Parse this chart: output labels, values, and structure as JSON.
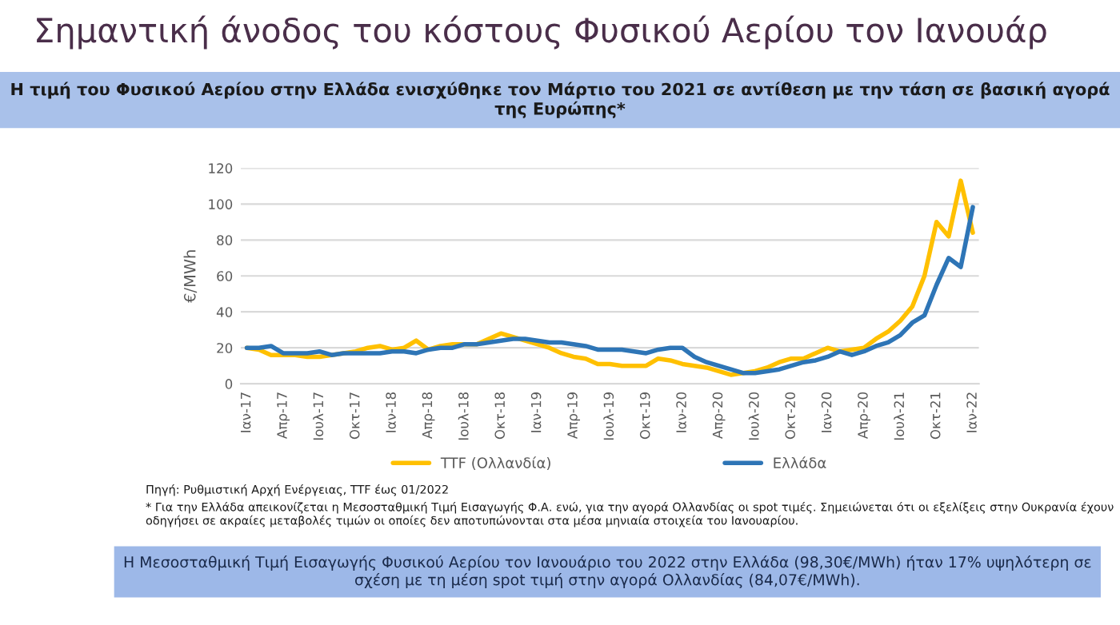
{
  "chart_data": {
    "type": "line",
    "title": "Σημαντική άνοδος του κόστους Φυσικού Αερίου τον Ιανουάρ",
    "subtitle": "Η τιμή του Φυσικού Αερίου στην Ελλάδα ενισχύθηκε τον Μάρτιο του 2021 σε αντίθεση με την τάση σε βασική αγορά της Ευρώπης*",
    "ylabel": "€/MWh",
    "categories": [
      "Ιαν-17",
      null,
      null,
      "Απρ-17",
      null,
      null,
      "Ιουλ-17",
      null,
      null,
      "Οκτ-17",
      null,
      null,
      "Ιαν-18",
      null,
      null,
      "Απρ-18",
      null,
      null,
      "Ιουλ-18",
      null,
      null,
      "Οκτ-18",
      null,
      null,
      "Ιαν-19",
      null,
      null,
      "Απρ-19",
      null,
      null,
      "Ιουλ-19",
      null,
      null,
      "Οκτ-19",
      null,
      null,
      "Ιαν-20",
      null,
      null,
      "Απρ-20",
      null,
      null,
      "Ιουλ-20",
      null,
      null,
      "Οκτ-20",
      null,
      null,
      "Ιαν-20",
      null,
      null,
      "Απρ-20",
      null,
      null,
      "Ιουλ-21",
      null,
      null,
      "Οκτ-21",
      null,
      null,
      "Ιαν-22"
    ],
    "series": [
      {
        "name": "TTF (Ολλανδία)",
        "color": "#ffc000",
        "values": [
          20,
          19,
          16,
          16,
          16,
          15,
          15,
          16,
          17,
          18,
          20,
          21,
          19,
          20,
          24,
          19,
          21,
          22,
          22,
          22,
          25,
          28,
          26,
          24,
          22,
          20,
          17,
          15,
          14,
          11,
          11,
          10,
          10,
          10,
          14,
          13,
          11,
          10,
          9,
          7,
          5,
          6,
          7,
          9,
          12,
          14,
          14,
          17,
          20,
          18,
          19,
          20,
          25,
          29,
          35,
          43,
          60,
          90,
          82,
          113,
          84.07
        ]
      },
      {
        "name": "Ελλάδα",
        "color": "#2e75b6",
        "values": [
          20,
          20,
          21,
          17,
          17,
          17,
          18,
          16,
          17,
          17,
          17,
          17,
          18,
          18,
          17,
          19,
          20,
          20,
          22,
          22,
          23,
          24,
          25,
          25,
          24,
          23,
          23,
          22,
          21,
          19,
          19,
          19,
          18,
          17,
          19,
          20,
          20,
          15,
          12,
          10,
          8,
          6,
          6,
          7,
          8,
          10,
          12,
          13,
          15,
          18,
          16,
          18,
          21,
          23,
          27,
          34,
          38,
          55,
          70,
          65,
          98.3
        ]
      }
    ],
    "ylim": [
      0,
      120
    ],
    "yticks": [
      0,
      20,
      40,
      60,
      80,
      100,
      120
    ],
    "grid": "y",
    "legend": "bottom",
    "marker": "none",
    "line_style": "solid",
    "annotations": [
      "Πηγή: Ρυθμιστική Αρχή Ενέργειας, TTF έως 01/2022",
      "* Για την Ελλάδα απεικονίζεται η Μεσοσταθμική Τιμή Εισαγωγής Φ.Α. ενώ, για την αγορά Ολλανδίας οι spot τιμές. Σημειώνεται ότι οι εξελίξεις στην Ουκρανία έχουν οδηγήσει σε ακραίες μεταβολές τιμών οι οποίες δεν αποτυπώνονται στα μέσα μηνιαία στοιχεία του Ιανουαρίου.",
      "Η Μεσοσταθμική Τιμή Εισαγωγής Φυσικού Αερίου τον Ιανουάριο του 2022 στην Ελλάδα (98,30€/MWh) ήταν 17% υψηλότερη σε σχέση με τη μέση spot τιμή στην αγορά Ολλανδίας (84,07€/MWh)."
    ]
  }
}
